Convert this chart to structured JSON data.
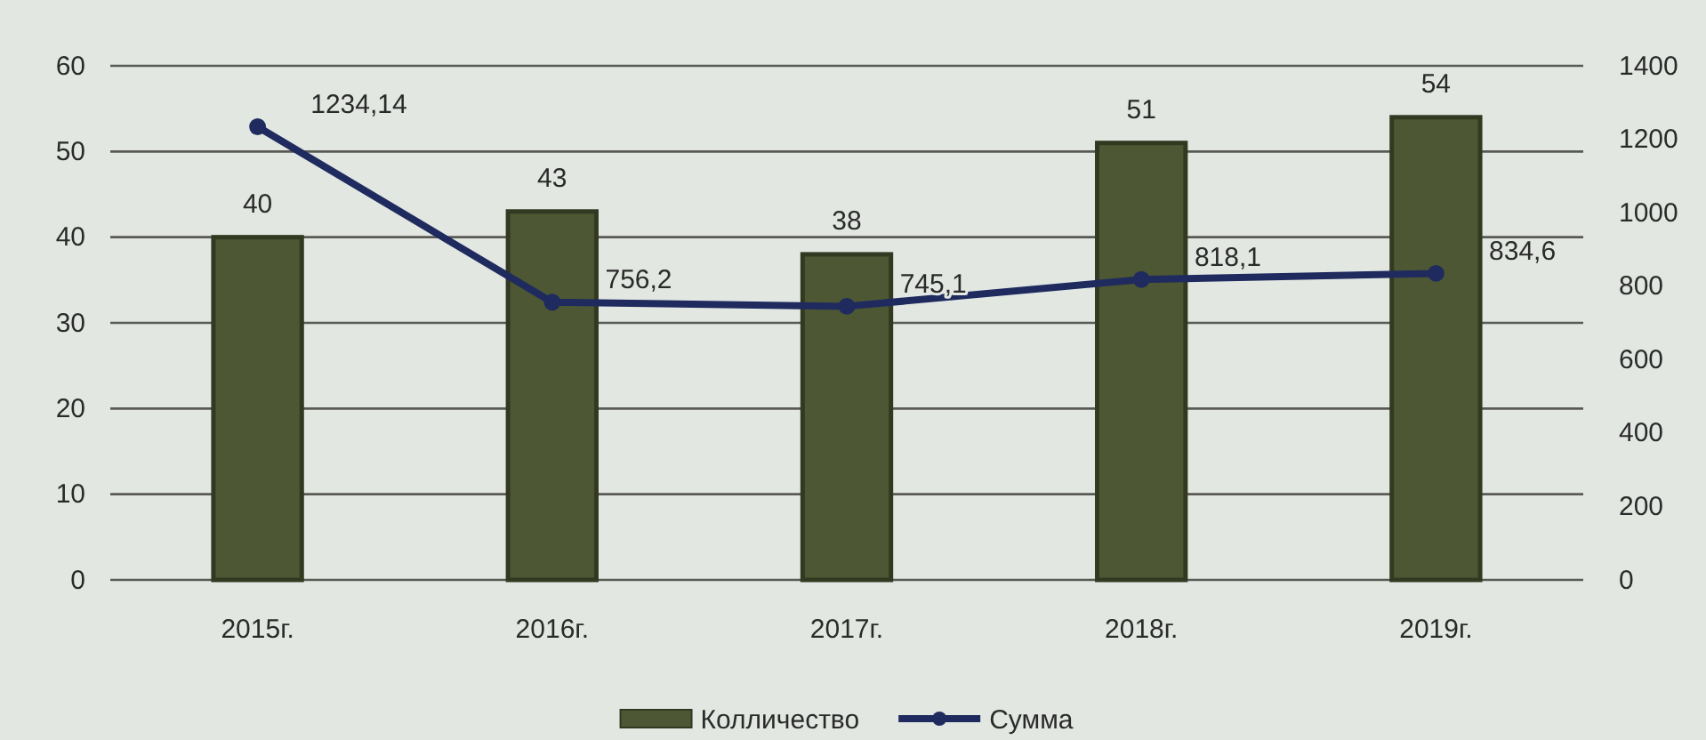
{
  "chart_data": {
    "type": "bar",
    "categories": [
      "2015г.",
      "2016г.",
      "2017г.",
      "2018г.",
      "2019г."
    ],
    "series": [
      {
        "name": "Колличество",
        "color": "#4e5733",
        "values": [
          40,
          43,
          38,
          51,
          54
        ],
        "value_labels": [
          "40",
          "43",
          "38",
          "51",
          "54"
        ]
      },
      {
        "name": "Сумма",
        "type": "line",
        "axis": "y2",
        "color": "#1f2b5e",
        "values": [
          1234.14,
          756.2,
          745.1,
          818.1,
          834.6
        ],
        "value_labels": [
          "1234,14",
          "756,2",
          "745,1",
          "818,1",
          "834,6"
        ]
      }
    ],
    "ylim": [
      0,
      60
    ],
    "yticks": [
      0,
      10,
      20,
      30,
      40,
      50,
      60
    ],
    "y2lim": [
      0,
      1400
    ],
    "y2ticks": [
      0,
      200,
      400,
      600,
      800,
      1000,
      1200,
      1400
    ],
    "grid": "y",
    "legend": "bottom",
    "marker": "circle"
  }
}
